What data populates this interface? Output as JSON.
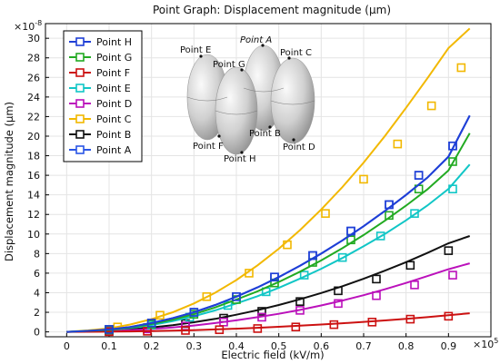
{
  "chart_data": {
    "type": "line",
    "title": "Point Graph: Displacement magnitude (µm)",
    "xlabel": "Electric field (kV/m)",
    "ylabel": "Displacement magnitude (µm)",
    "x_exponent": "×10",
    "x_exponent_power": "5",
    "y_exponent": "×10",
    "y_exponent_power": "-8",
    "xlim": [
      -0.05,
      1.0
    ],
    "ylim": [
      -0.5,
      31.5
    ],
    "x_ticks": [
      "0",
      "0.1",
      "0.2",
      "0.3",
      "0.4",
      "0.5",
      "0.6",
      "0.7",
      "0.8",
      "0.9"
    ],
    "x_tick_values": [
      0,
      0.1,
      0.2,
      0.3,
      0.4,
      0.5,
      0.6,
      0.7,
      0.8,
      0.9
    ],
    "y_ticks": [
      "0",
      "2",
      "4",
      "6",
      "8",
      "10",
      "12",
      "14",
      "16",
      "18",
      "20",
      "22",
      "24",
      "26",
      "28",
      "30"
    ],
    "y_tick_values": [
      0,
      2,
      4,
      6,
      8,
      10,
      12,
      14,
      16,
      18,
      20,
      22,
      24,
      26,
      28,
      30
    ],
    "grid": true,
    "legend_position": "top-left",
    "series": [
      {
        "name": "Point H",
        "color": "#1f3fd6",
        "x": [
          0,
          0.05,
          0.1,
          0.15,
          0.2,
          0.25,
          0.3,
          0.35,
          0.4,
          0.45,
          0.5,
          0.55,
          0.6,
          0.65,
          0.7,
          0.75,
          0.8,
          0.85,
          0.9,
          0.95
        ],
        "y": [
          0,
          0.1,
          0.25,
          0.5,
          0.9,
          1.4,
          2.0,
          2.75,
          3.6,
          4.55,
          5.6,
          6.75,
          8.0,
          9.35,
          10.8,
          12.35,
          14.0,
          15.75,
          17.9,
          22.1
        ],
        "marker_x": [
          0.1,
          0.2,
          0.3,
          0.4,
          0.49,
          0.58,
          0.67,
          0.76,
          0.83,
          0.91
        ],
        "marker_y": [
          0.25,
          0.9,
          2.0,
          3.6,
          5.6,
          7.8,
          10.3,
          13.0,
          16.0,
          19.0
        ]
      },
      {
        "name": "Point G",
        "color": "#22aa22",
        "x": [
          0,
          0.05,
          0.1,
          0.15,
          0.2,
          0.25,
          0.3,
          0.35,
          0.4,
          0.45,
          0.5,
          0.55,
          0.6,
          0.65,
          0.7,
          0.75,
          0.8,
          0.85,
          0.9,
          0.95
        ],
        "y": [
          0,
          0.1,
          0.2,
          0.45,
          0.8,
          1.25,
          1.8,
          2.5,
          3.3,
          4.15,
          5.1,
          6.15,
          7.3,
          8.55,
          9.9,
          11.35,
          12.9,
          14.55,
          16.5,
          20.3
        ],
        "marker_x": [
          0.1,
          0.2,
          0.3,
          0.4,
          0.49,
          0.58,
          0.67,
          0.76,
          0.83,
          0.91
        ],
        "marker_y": [
          0.2,
          0.8,
          1.8,
          3.3,
          5.0,
          7.1,
          9.4,
          11.9,
          14.6,
          17.4
        ]
      },
      {
        "name": "Point F",
        "color": "#cc1111",
        "x": [
          0,
          0.05,
          0.1,
          0.15,
          0.2,
          0.25,
          0.3,
          0.35,
          0.4,
          0.45,
          0.5,
          0.55,
          0.6,
          0.65,
          0.7,
          0.75,
          0.8,
          0.85,
          0.9,
          0.95
        ],
        "y": [
          0,
          0.01,
          0.02,
          0.05,
          0.08,
          0.12,
          0.18,
          0.25,
          0.33,
          0.42,
          0.52,
          0.63,
          0.75,
          0.88,
          1.02,
          1.17,
          1.33,
          1.5,
          1.7,
          1.9
        ],
        "marker_x": [
          0.1,
          0.19,
          0.28,
          0.36,
          0.45,
          0.54,
          0.63,
          0.72,
          0.81,
          0.9
        ],
        "marker_y": [
          0.02,
          0.07,
          0.15,
          0.22,
          0.34,
          0.5,
          0.74,
          1.0,
          1.3,
          1.6
        ]
      },
      {
        "name": "Point E",
        "color": "#11c6c6",
        "x": [
          0,
          0.05,
          0.1,
          0.15,
          0.2,
          0.25,
          0.3,
          0.35,
          0.4,
          0.45,
          0.5,
          0.55,
          0.6,
          0.65,
          0.7,
          0.75,
          0.8,
          0.85,
          0.9,
          0.95
        ],
        "y": [
          0,
          0.08,
          0.2,
          0.4,
          0.7,
          1.1,
          1.6,
          2.2,
          2.9,
          3.65,
          4.5,
          5.45,
          6.45,
          7.55,
          8.75,
          10.0,
          11.4,
          12.9,
          14.6,
          17.1
        ],
        "marker_x": [
          0.1,
          0.2,
          0.29,
          0.38,
          0.47,
          0.56,
          0.65,
          0.74,
          0.82,
          0.91
        ],
        "marker_y": [
          0.2,
          0.7,
          1.5,
          2.7,
          4.1,
          5.8,
          7.6,
          9.8,
          12.1,
          14.6
        ]
      },
      {
        "name": "Point D",
        "color": "#bb11bb",
        "x": [
          0,
          0.05,
          0.1,
          0.15,
          0.2,
          0.25,
          0.3,
          0.35,
          0.4,
          0.45,
          0.5,
          0.55,
          0.6,
          0.65,
          0.7,
          0.75,
          0.8,
          0.85,
          0.9,
          0.95
        ],
        "y": [
          0,
          0.03,
          0.08,
          0.18,
          0.3,
          0.45,
          0.65,
          0.9,
          1.18,
          1.5,
          1.85,
          2.25,
          2.7,
          3.2,
          3.75,
          4.35,
          5.0,
          5.7,
          6.4,
          7.0
        ],
        "marker_x": [
          0.1,
          0.19,
          0.28,
          0.37,
          0.46,
          0.55,
          0.64,
          0.73,
          0.82,
          0.91
        ],
        "marker_y": [
          0.08,
          0.3,
          0.6,
          1.0,
          1.5,
          2.2,
          2.9,
          3.7,
          4.8,
          5.8
        ]
      },
      {
        "name": "Point C",
        "color": "#f2b800",
        "x": [
          0,
          0.05,
          0.1,
          0.15,
          0.2,
          0.25,
          0.3,
          0.35,
          0.4,
          0.45,
          0.5,
          0.55,
          0.6,
          0.65,
          0.7,
          0.75,
          0.8,
          0.85,
          0.9,
          0.95
        ],
        "y": [
          0,
          0.15,
          0.35,
          0.75,
          1.3,
          2.0,
          2.9,
          4.0,
          5.3,
          6.8,
          8.5,
          10.4,
          12.5,
          14.8,
          17.3,
          20.0,
          22.9,
          25.9,
          29.0,
          31.0
        ],
        "marker_x": [
          0.12,
          0.22,
          0.33,
          0.43,
          0.52,
          0.61,
          0.7,
          0.78,
          0.86,
          0.93
        ],
        "marker_y": [
          0.5,
          1.7,
          3.6,
          6.0,
          8.9,
          12.1,
          15.6,
          19.2,
          23.1,
          27.0
        ]
      },
      {
        "name": "Point B",
        "color": "#111111",
        "x": [
          0,
          0.05,
          0.1,
          0.15,
          0.2,
          0.25,
          0.3,
          0.35,
          0.4,
          0.45,
          0.5,
          0.55,
          0.6,
          0.65,
          0.7,
          0.75,
          0.8,
          0.85,
          0.9,
          0.95
        ],
        "y": [
          0,
          0.05,
          0.12,
          0.26,
          0.45,
          0.68,
          0.98,
          1.33,
          1.75,
          2.22,
          2.75,
          3.33,
          3.97,
          4.67,
          5.43,
          6.25,
          7.12,
          8.06,
          9.05,
          9.8
        ],
        "marker_x": [
          0.1,
          0.19,
          0.28,
          0.37,
          0.46,
          0.55,
          0.64,
          0.73,
          0.81,
          0.9
        ],
        "marker_y": [
          0.12,
          0.42,
          0.85,
          1.4,
          2.1,
          3.1,
          4.2,
          5.4,
          6.8,
          8.3
        ]
      },
      {
        "name": "Point A",
        "color": "#2a55e6",
        "x": [
          0,
          0.05,
          0.1,
          0.15,
          0.2,
          0.25,
          0.3,
          0.35,
          0.4,
          0.45,
          0.5,
          0.55,
          0.6,
          0.65,
          0.7,
          0.75,
          0.8,
          0.85,
          0.9,
          0.95
        ],
        "y": [
          0,
          0.1,
          0.25,
          0.5,
          0.9,
          1.4,
          2.0,
          2.75,
          3.6,
          4.55,
          5.6,
          6.75,
          8.0,
          9.35,
          10.8,
          12.35,
          14.0,
          15.75,
          17.9,
          22.1
        ],
        "marker_x": [
          0.1,
          0.2,
          0.3,
          0.4,
          0.49,
          0.58,
          0.67,
          0.76,
          0.83,
          0.91
        ],
        "marker_y": [
          0.25,
          0.9,
          2.0,
          3.6,
          5.6,
          7.8,
          10.3,
          13.0,
          16.0,
          19.0
        ]
      }
    ],
    "inset": {
      "labels": [
        "Point E",
        "Point G",
        "Point A",
        "Point C",
        "Point B",
        "Point F",
        "Point H",
        "Point D"
      ]
    }
  }
}
